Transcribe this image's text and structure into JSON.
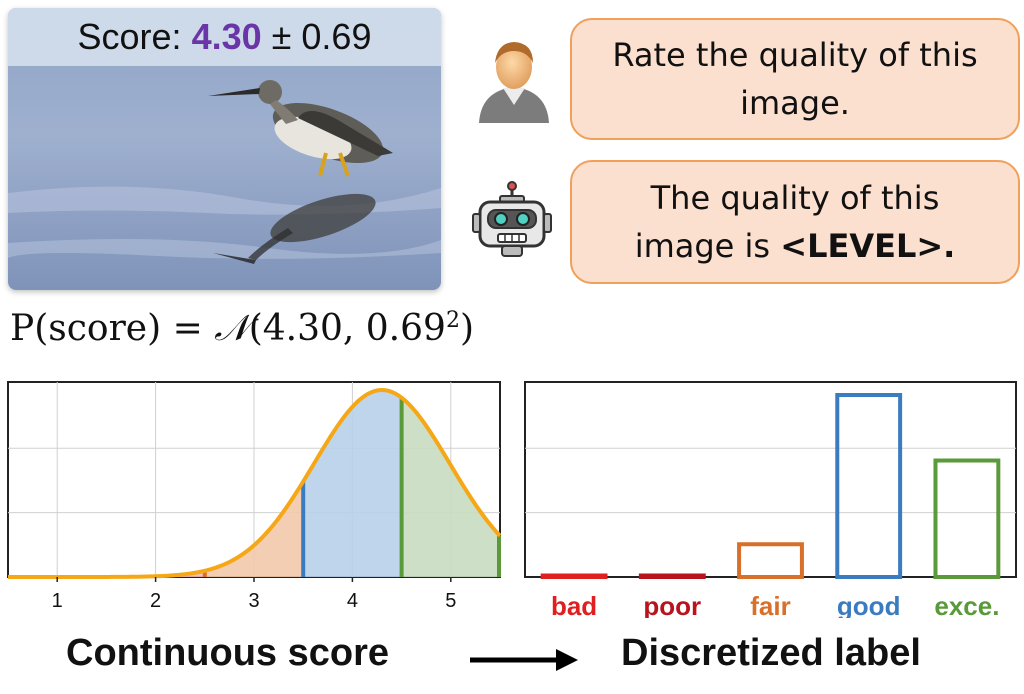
{
  "photo": {
    "score_prefix": "Score:",
    "score_value": "4.30",
    "score_std": "± 0.69"
  },
  "dialog": {
    "user_prompt": [
      "Rate the quality of this",
      "image."
    ],
    "robot_reply_line1": "The quality of this",
    "robot_reply_line2_prefix": "image is ",
    "robot_reply_line2_bold": "<LEVEL>."
  },
  "formula": {
    "lhs": "P(score) = ",
    "rhs_N": "𝒩",
    "rhs_args": "(4.30, 0.69",
    "rhs_exp": "2",
    "rhs_close": ")"
  },
  "chart_data": [
    {
      "type": "area",
      "xlabel": "",
      "ylabel": "",
      "xlim": [
        0.5,
        5.5
      ],
      "x_ticks": [
        "1",
        "2",
        "3",
        "4",
        "5"
      ],
      "curve": {
        "mean": 4.3,
        "std": 0.69,
        "color": "#f5a716"
      },
      "regions": [
        {
          "label": "bad",
          "from": 0.5,
          "to": 1.5,
          "color": "#e02020"
        },
        {
          "label": "poor",
          "from": 1.5,
          "to": 2.5,
          "color": "#b8141e"
        },
        {
          "label": "fair",
          "from": 2.5,
          "to": 3.5,
          "color": "#d8702a"
        },
        {
          "label": "good",
          "from": 3.5,
          "to": 4.5,
          "color": "#3b7bbf"
        },
        {
          "label": "exce.",
          "from": 4.5,
          "to": 5.5,
          "color": "#5a9a3a"
        }
      ],
      "grid": true
    },
    {
      "type": "bar",
      "categories": [
        "bad",
        "poor",
        "fair",
        "good",
        "exce."
      ],
      "values": [
        0.0,
        0.001,
        0.18,
        1.0,
        0.64
      ],
      "colors": [
        "#e02020",
        "#b8141e",
        "#d8702a",
        "#3b7bbf",
        "#5a9a3a"
      ],
      "ylim": [
        0,
        1.0
      ],
      "grid": true
    }
  ],
  "footer": {
    "left": "Continuous score",
    "right": "Discretized label"
  }
}
